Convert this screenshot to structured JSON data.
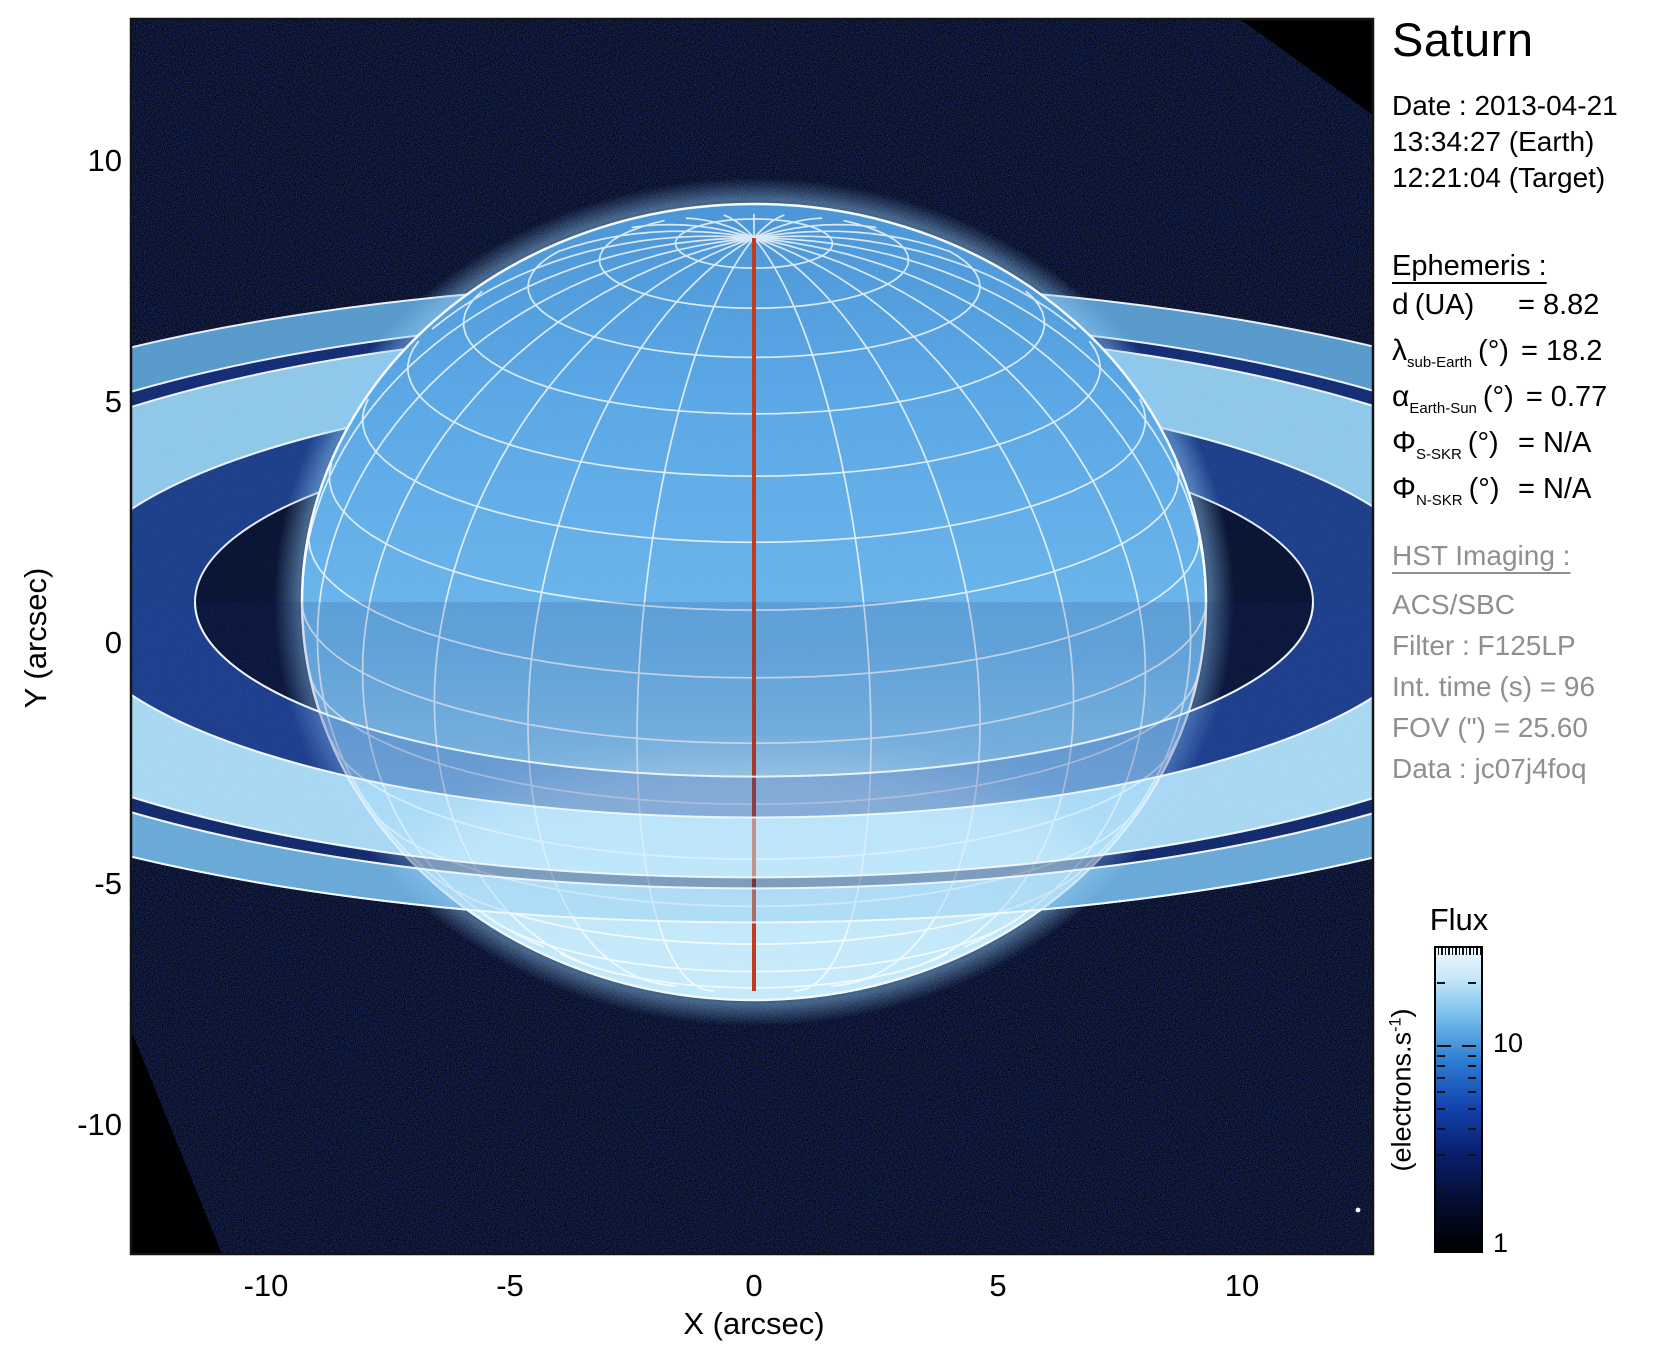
{
  "figure": {
    "title": "Saturn",
    "date_lines": [
      "Date : 2013-04-21",
      "13:34:27 (Earth)",
      "12:21:04 (Target)"
    ],
    "ephemeris": {
      "heading": "Ephemeris :",
      "rows": [
        {
          "symbol": "d",
          "subscript": "",
          "unit": "(UA)",
          "value": "= 8.82"
        },
        {
          "symbol": "λ",
          "subscript": "sub-Earth",
          "unit": "(°)",
          "value": "= 18.2"
        },
        {
          "symbol": "α",
          "subscript": "Earth-Sun",
          "unit": "(°)",
          "value": "= 0.77"
        },
        {
          "symbol": "Φ",
          "subscript": "S-SKR",
          "unit": "(°)",
          "value": "= N/A"
        },
        {
          "symbol": "Φ",
          "subscript": "N-SKR",
          "unit": "(°)",
          "value": "= N/A"
        }
      ]
    },
    "hst_imaging": {
      "heading": "HST Imaging :",
      "lines": [
        "ACS/SBC",
        "Filter : F125LP",
        "Int. time (s) = 96",
        "FOV (\") = 25.60",
        "Data : jc07j4foq"
      ]
    },
    "colorbar": {
      "title": "Flux",
      "unit_prefix": "(electrons.s",
      "unit_exp": "-1",
      "unit_suffix": ")",
      "tick_hi": "10",
      "tick_lo": "1"
    }
  },
  "chart_data": {
    "type": "heatmap",
    "title": "Saturn",
    "xlabel": "X (arcsec)",
    "ylabel": "Y (arcsec)",
    "xlim": [
      -12.8,
      12.7
    ],
    "ylim": [
      -12.7,
      12.9
    ],
    "xticks": [
      -10,
      -5,
      0,
      5,
      10
    ],
    "yticks": [
      10,
      5,
      0,
      -5,
      -10
    ],
    "grid": false,
    "colorbar": {
      "title": "Flux",
      "unit_label": "(electrons.s⁻¹)",
      "scale": "log",
      "range": [
        1,
        30
      ],
      "labeled_ticks": [
        1,
        10
      ]
    },
    "image_content": {
      "description": "HST ACS/SBC far-ultraviolet image of Saturn shown in a blue log-stretch colour map; bright planetary disk with white planetographic latitude-longitude grid overlay, red central-meridian line, bright B and A rings crossing the full field, dark C-ring/inner gap around the disk, noisy dark-blue sky background, black detector-edge wedges in lower-left and upper-right corners",
      "planet": {
        "center_arcsec": [
          0,
          0.85
        ],
        "equatorial_radius_arcsec": 9.3,
        "projected_polar_radius_arcsec": 8.2,
        "sub_earth_latitude_deg": 18.2
      },
      "rings_semi_major_arcsec": {
        "c_inner": 11.5,
        "b_inner": 14.1,
        "b_outer": 18.1,
        "a_inner": 18.8,
        "a_outer": 21.0
      },
      "grid_overlay": {
        "latitude_step_deg": 10,
        "longitude_step_deg": 15,
        "color": "#ffffff"
      },
      "central_meridian_color": "#c03a1c"
    },
    "colors": {
      "background": "#05040f",
      "planet_disk": "#6ab4ec",
      "b_ring": "#9ad4f2",
      "c_ring_dark": "#162a6e",
      "accent_red": "#c03a1c"
    }
  }
}
